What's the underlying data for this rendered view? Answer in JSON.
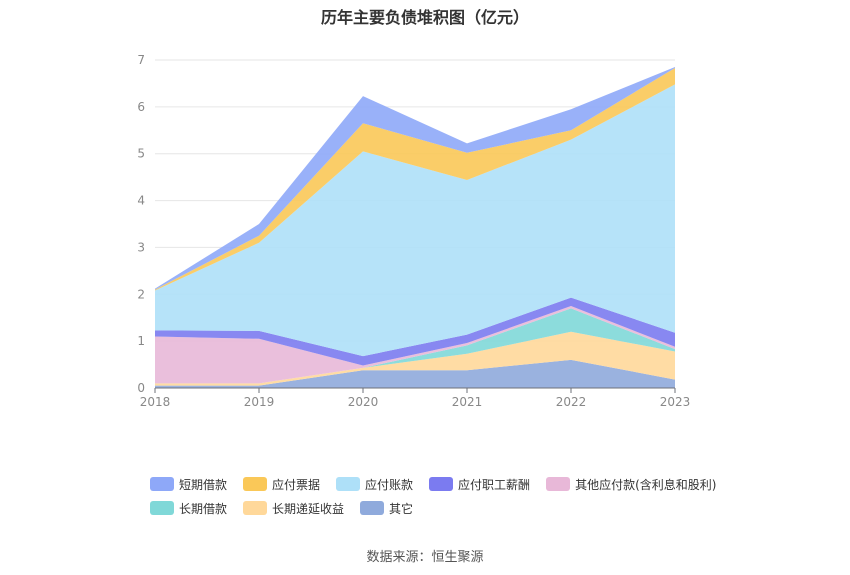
{
  "chart_data": {
    "type": "area",
    "stacked": true,
    "title": "历年主要负债堆积图（亿元）",
    "categories": [
      "2018",
      "2019",
      "2020",
      "2021",
      "2022",
      "2023"
    ],
    "yticks": [
      "0",
      "1",
      "2",
      "3",
      "4",
      "5",
      "6",
      "7"
    ],
    "ylim": [
      0,
      7
    ],
    "series": [
      {
        "name": "其它",
        "color": "#8faadc",
        "values": [
          0.05,
          0.05,
          0.38,
          0.38,
          0.6,
          0.18
        ]
      },
      {
        "name": "长期递延收益",
        "color": "#ffd89a",
        "values": [
          0.05,
          0.05,
          0.05,
          0.35,
          0.6,
          0.6
        ]
      },
      {
        "name": "长期借款",
        "color": "#80d8d8",
        "values": [
          0.0,
          0.0,
          0.0,
          0.18,
          0.5,
          0.05
        ]
      },
      {
        "name": "其他应付款(含利息和股利)",
        "color": "#e8b8d8",
        "values": [
          1.0,
          0.95,
          0.05,
          0.05,
          0.05,
          0.05
        ]
      },
      {
        "name": "应付职工薪酬",
        "color": "#7b7bf0",
        "values": [
          0.13,
          0.17,
          0.2,
          0.18,
          0.18,
          0.3
        ]
      },
      {
        "name": "应付账款",
        "color": "#aee0f8",
        "values": [
          0.85,
          1.88,
          4.37,
          3.3,
          3.37,
          5.3
        ]
      },
      {
        "name": "应付票据",
        "color": "#fac858",
        "values": [
          0.02,
          0.15,
          0.6,
          0.58,
          0.2,
          0.35
        ]
      },
      {
        "name": "短期借款",
        "color": "#8ea8f8",
        "values": [
          0.02,
          0.25,
          0.58,
          0.2,
          0.45,
          0.02
        ]
      }
    ],
    "legend": {
      "rows": [
        [
          "短期借款",
          "应付票据",
          "应付账款",
          "应付职工薪酬",
          "其他应付款(含利息和股利)"
        ],
        [
          "长期借款",
          "长期递延收益",
          "其它"
        ]
      ]
    }
  },
  "source_label": "数据来源：恒生聚源"
}
